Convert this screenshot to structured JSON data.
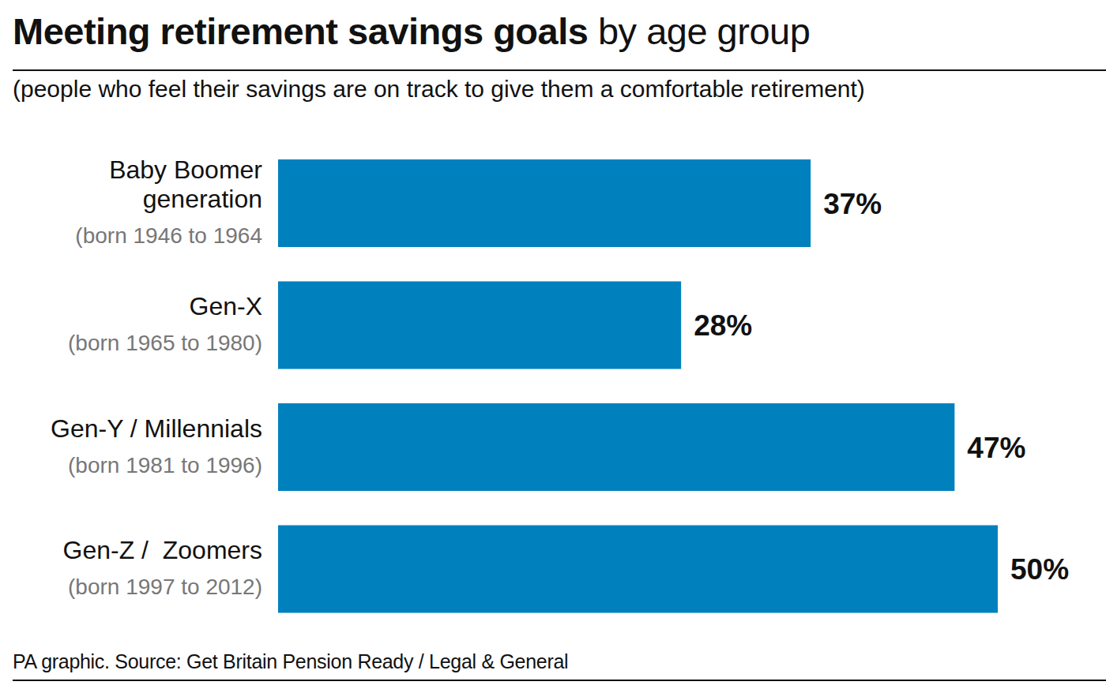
{
  "chart_data": {
    "type": "bar",
    "title": "Meeting retirement savings goals by age group",
    "subtitle": "(people who feel their savings are on track to give them a comfortable retirement)",
    "source": "PA graphic. Source: Get Britain Pension Ready / Legal & General",
    "categories": [
      "Baby Boomer\ngeneration",
      "Gen-X",
      "Gen-Y / Millennials",
      "Gen-Z /  Zoomers"
    ],
    "sublabels": [
      "(born 1946 to 1964",
      "(born 1965 to 1980)",
      "(born 1981 to 1996)",
      "(born 1997 to 2012)"
    ],
    "values": [
      37,
      28,
      47,
      50
    ],
    "value_labels": [
      "37%",
      "28%",
      "47%",
      "50%"
    ],
    "color": "#0081bd",
    "xlim": [
      0,
      50
    ],
    "orientation": "horizontal",
    "data_labels": true,
    "tick_labels": false,
    "grid": false
  }
}
